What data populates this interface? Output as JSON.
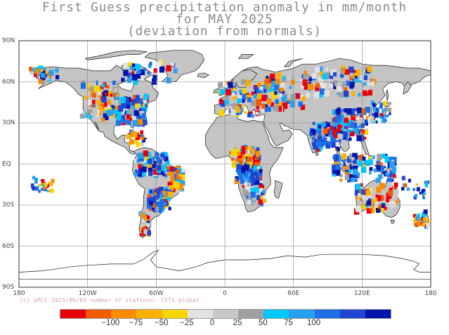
{
  "title": {
    "line1": "First Guess precipitation anomaly in mm/month",
    "line2": "for MAY 2025",
    "line3": "(deviation from normals)"
  },
  "credit": "(c) GPCC 2025/06/03 number of stations: 7271 global",
  "lat_labels": [
    "90N",
    "60N",
    "30N",
    "EQ",
    "30S",
    "60S",
    "90S"
  ],
  "lon_labels": [
    "180",
    "120W",
    "60W",
    "0",
    "60E",
    "120E",
    "180"
  ],
  "legend": {
    "colors": [
      "#e8000a",
      "#f45a00",
      "#fa8c00",
      "#fbb000",
      "#f8d500",
      "#e2e2e2",
      "#c8c8c8",
      "#a0a0a0",
      "#00c8ff",
      "#28a0f0",
      "#1e6ee6",
      "#1e46d2",
      "#0014aa"
    ],
    "ticks": [
      "−100",
      "−75",
      "−50",
      "−25",
      "0",
      "25",
      "50",
      "75",
      "100"
    ]
  },
  "colors": {
    "land": "#c4c4c4",
    "coast": "#1a1a1a",
    "grid": "#808080",
    "background": "#ffffff"
  }
}
